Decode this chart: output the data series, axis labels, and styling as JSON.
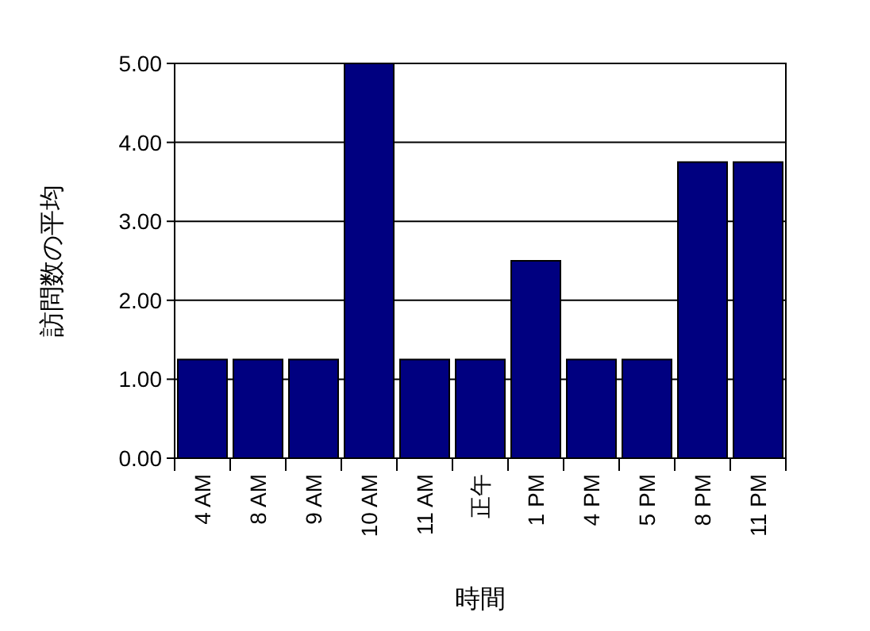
{
  "chart_data": {
    "type": "bar",
    "xlabel": "時間",
    "ylabel": "訪問数の平均",
    "categories": [
      "4 AM",
      "8 AM",
      "9 AM",
      "10 AM",
      "11 AM",
      "正午",
      "1 PM",
      "4 PM",
      "5 PM",
      "8 PM",
      "11 PM"
    ],
    "values": [
      1.25,
      1.25,
      1.25,
      5,
      1.25,
      1.25,
      2.5,
      1.25,
      1.25,
      3.75,
      3.75
    ],
    "color": "#000080",
    "ylim": [
      0,
      5
    ],
    "yticks": [
      {
        "value": 0,
        "label": "0.00"
      },
      {
        "value": 1,
        "label": "1.00"
      },
      {
        "value": 2,
        "label": "2.00"
      },
      {
        "value": 3,
        "label": "3.00"
      },
      {
        "value": 4,
        "label": "4.00"
      },
      {
        "value": 5,
        "label": "5.00"
      }
    ],
    "grid": "y"
  }
}
